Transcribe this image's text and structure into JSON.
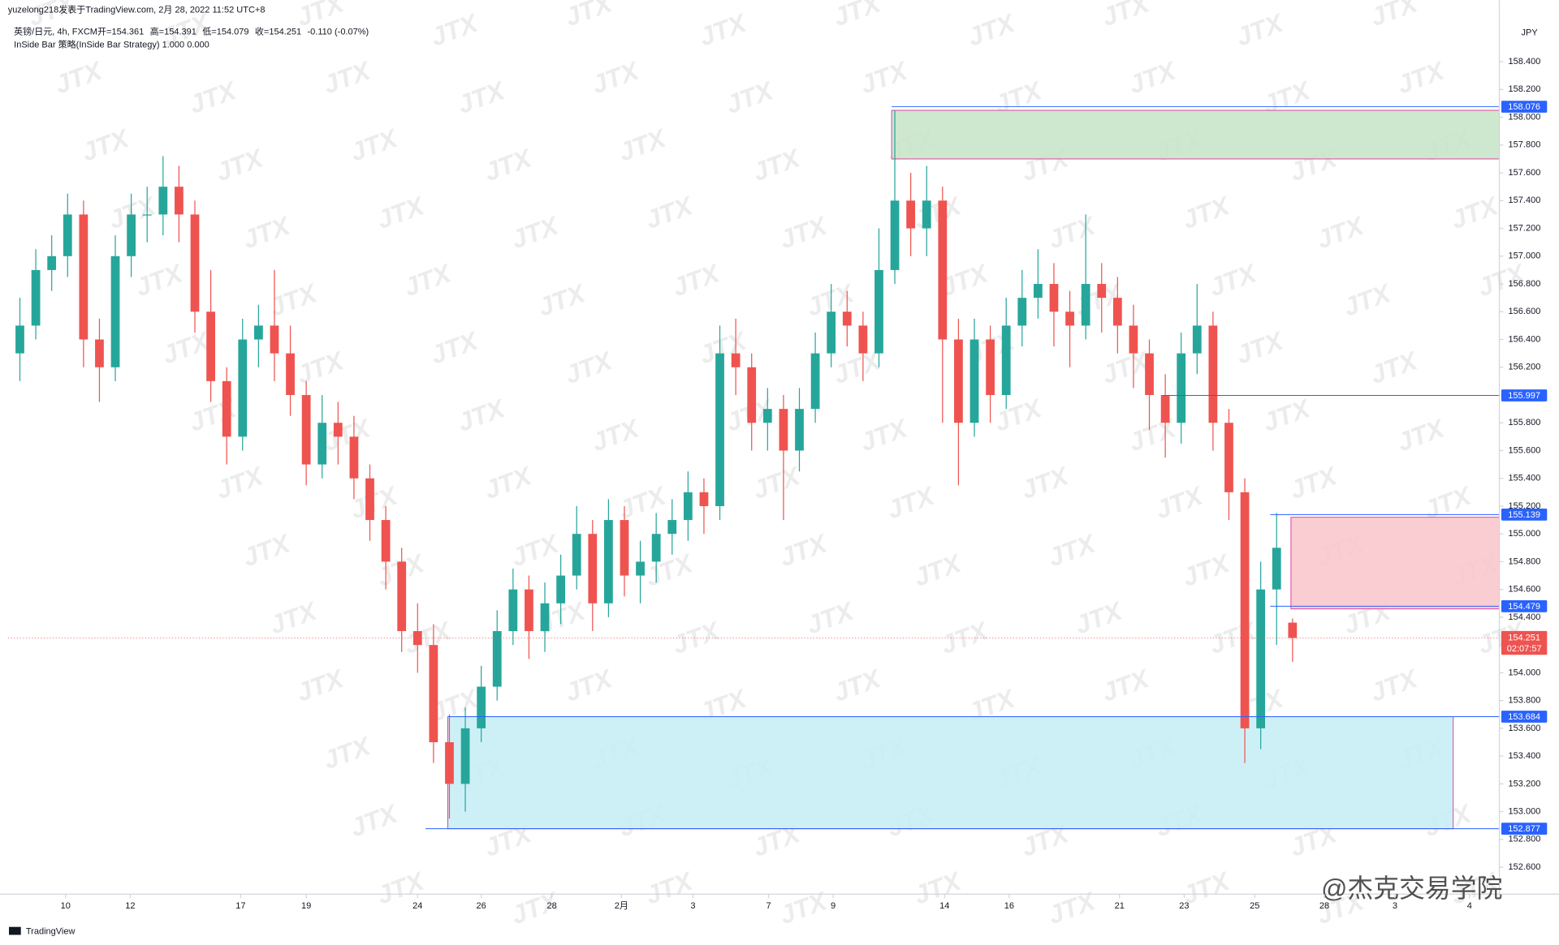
{
  "header": {
    "publisher": "yuzelong218发表于TradingView.com, 2月 28, 2022 11:52 UTC+8",
    "symbol": "英镑/日元, 4h, FXCM",
    "ohlc_text": [
      "开=154.361",
      "高=154.391",
      "低=154.079",
      "收=154.251",
      "-0.110 (-0.07%)"
    ],
    "strategy": "InSide Bar 策略(InSide Bar Strategy)  1.000  0.000"
  },
  "footer": "TradingView",
  "watermark": "JTX",
  "corner_watermark": "@杰克交易学院",
  "chart_data": {
    "type": "candlestick",
    "up_color": "#26a69a",
    "down_color": "#ef5350",
    "currency": "JPY",
    "xlim": [
      -0.75,
      93
    ],
    "ylim": [
      152.406,
      158.843
    ],
    "xticks": [
      {
        "value": 2.875,
        "label": "10"
      },
      {
        "value": 6.938,
        "label": "12"
      },
      {
        "value": 13.875,
        "label": "17"
      },
      {
        "value": 18,
        "label": "19"
      },
      {
        "value": 25,
        "label": "24"
      },
      {
        "value": 29,
        "label": "26"
      },
      {
        "value": 33.438,
        "label": "28"
      },
      {
        "value": 37.813,
        "label": "2月"
      },
      {
        "value": 42.313,
        "label": "3"
      },
      {
        "value": 47.063,
        "label": "7"
      },
      {
        "value": 51.125,
        "label": "9"
      },
      {
        "value": 58.125,
        "label": "14"
      },
      {
        "value": 62.188,
        "label": "16"
      },
      {
        "value": 69.125,
        "label": "21"
      },
      {
        "value": 73.188,
        "label": "23"
      },
      {
        "value": 77.625,
        "label": "25"
      },
      {
        "value": 82,
        "label": "28"
      },
      {
        "value": 86.438,
        "label": "3"
      },
      {
        "value": 91.125,
        "label": "4"
      }
    ],
    "yticks": [
      {
        "value": 152.6,
        "label": "152.600"
      },
      {
        "value": 152.8,
        "label": "152.800"
      },
      {
        "value": 153,
        "label": "153.000"
      },
      {
        "value": 153.2,
        "label": "153.200"
      },
      {
        "value": 153.4,
        "label": "153.400"
      },
      {
        "value": 153.6,
        "label": "153.600"
      },
      {
        "value": 153.8,
        "label": "153.800"
      },
      {
        "value": 154,
        "label": "154.000"
      },
      {
        "value": 154.2,
        "label": "154.200"
      },
      {
        "value": 154.4,
        "label": "154.400"
      },
      {
        "value": 154.6,
        "label": "154.600"
      },
      {
        "value": 154.8,
        "label": "154.800"
      },
      {
        "value": 155,
        "label": "155.000"
      },
      {
        "value": 155.2,
        "label": "155.200"
      },
      {
        "value": 155.4,
        "label": "155.400"
      },
      {
        "value": 155.6,
        "label": "155.600"
      },
      {
        "value": 155.8,
        "label": "155.800"
      },
      {
        "value": 156,
        "label": "156.000"
      },
      {
        "value": 156.2,
        "label": "156.200"
      },
      {
        "value": 156.4,
        "label": "156.400"
      },
      {
        "value": 156.6,
        "label": "156.600"
      },
      {
        "value": 156.8,
        "label": "156.800"
      },
      {
        "value": 157,
        "label": "157.000"
      },
      {
        "value": 157.2,
        "label": "157.200"
      },
      {
        "value": 157.4,
        "label": "157.400"
      },
      {
        "value": 157.6,
        "label": "157.600"
      },
      {
        "value": 157.8,
        "label": "157.800"
      },
      {
        "value": 158,
        "label": "158.000"
      },
      {
        "value": 158.2,
        "label": "158.200"
      },
      {
        "value": 158.4,
        "label": "158.400"
      }
    ],
    "ohlc": [
      [
        156.3,
        156.7,
        156.1,
        156.5
      ],
      [
        156.5,
        157.05,
        156.4,
        156.9
      ],
      [
        156.9,
        157.15,
        156.75,
        157.0
      ],
      [
        157.0,
        157.45,
        156.85,
        157.3
      ],
      [
        157.3,
        157.4,
        156.2,
        156.4
      ],
      [
        156.4,
        156.55,
        155.95,
        156.2
      ],
      [
        156.2,
        157.15,
        156.1,
        157.0
      ],
      [
        157.0,
        157.45,
        156.85,
        157.3
      ],
      [
        157.3,
        157.5,
        157.1,
        157.3
      ],
      [
        157.3,
        157.72,
        157.15,
        157.5
      ],
      [
        157.5,
        157.65,
        157.1,
        157.3
      ],
      [
        157.3,
        157.4,
        156.45,
        156.6
      ],
      [
        156.6,
        156.9,
        155.95,
        156.1
      ],
      [
        156.1,
        156.2,
        155.5,
        155.7
      ],
      [
        155.7,
        156.55,
        155.6,
        156.4
      ],
      [
        156.4,
        156.65,
        156.2,
        156.5
      ],
      [
        156.5,
        156.9,
        156.1,
        156.3
      ],
      [
        156.3,
        156.5,
        155.85,
        156.0
      ],
      [
        156.0,
        156.1,
        155.35,
        155.5
      ],
      [
        155.5,
        156.0,
        155.4,
        155.8
      ],
      [
        155.8,
        155.95,
        155.5,
        155.7
      ],
      [
        155.7,
        155.85,
        155.25,
        155.4
      ],
      [
        155.4,
        155.5,
        154.95,
        155.1
      ],
      [
        155.1,
        155.2,
        154.6,
        154.8
      ],
      [
        154.8,
        154.9,
        154.15,
        154.3
      ],
      [
        154.3,
        154.5,
        154.0,
        154.2
      ],
      [
        154.2,
        154.35,
        153.35,
        153.5
      ],
      [
        153.5,
        153.7,
        152.95,
        153.2
      ],
      [
        153.2,
        153.75,
        153.0,
        153.6
      ],
      [
        153.6,
        154.05,
        153.5,
        153.9
      ],
      [
        153.9,
        154.45,
        153.8,
        154.3
      ],
      [
        154.3,
        154.75,
        154.2,
        154.6
      ],
      [
        154.6,
        154.7,
        154.1,
        154.3
      ],
      [
        154.3,
        154.65,
        154.15,
        154.5
      ],
      [
        154.5,
        154.85,
        154.35,
        154.7
      ],
      [
        154.7,
        155.2,
        154.6,
        155.0
      ],
      [
        155.0,
        155.1,
        154.3,
        154.5
      ],
      [
        154.5,
        155.25,
        154.4,
        155.1
      ],
      [
        155.1,
        155.2,
        154.55,
        154.7
      ],
      [
        154.7,
        154.95,
        154.5,
        154.8
      ],
      [
        154.8,
        155.15,
        154.65,
        155.0
      ],
      [
        155.0,
        155.25,
        154.85,
        155.1
      ],
      [
        155.1,
        155.45,
        154.95,
        155.3
      ],
      [
        155.3,
        155.4,
        155.0,
        155.2
      ],
      [
        155.2,
        156.5,
        155.1,
        156.3
      ],
      [
        156.3,
        156.55,
        156.0,
        156.2
      ],
      [
        156.2,
        156.3,
        155.6,
        155.8
      ],
      [
        155.8,
        156.05,
        155.6,
        155.9
      ],
      [
        155.9,
        156.0,
        155.1,
        155.6
      ],
      [
        155.6,
        156.05,
        155.45,
        155.9
      ],
      [
        155.9,
        156.45,
        155.8,
        156.3
      ],
      [
        156.3,
        156.8,
        156.2,
        156.6
      ],
      [
        156.6,
        156.75,
        156.35,
        156.5
      ],
      [
        156.5,
        156.6,
        156.1,
        156.3
      ],
      [
        156.3,
        157.2,
        156.2,
        156.9
      ],
      [
        156.9,
        158.05,
        156.8,
        157.4
      ],
      [
        157.4,
        157.6,
        157.0,
        157.2
      ],
      [
        157.2,
        157.65,
        157.0,
        157.4
      ],
      [
        157.4,
        157.5,
        155.8,
        156.4
      ],
      [
        156.4,
        156.55,
        155.35,
        155.8
      ],
      [
        155.8,
        156.55,
        155.7,
        156.4
      ],
      [
        156.4,
        156.5,
        155.8,
        156.0
      ],
      [
        156.0,
        156.7,
        155.9,
        156.5
      ],
      [
        156.5,
        156.9,
        156.35,
        156.7
      ],
      [
        156.7,
        157.05,
        156.55,
        156.8
      ],
      [
        156.8,
        156.95,
        156.35,
        156.6
      ],
      [
        156.6,
        156.75,
        156.2,
        156.5
      ],
      [
        156.5,
        157.3,
        156.4,
        156.8
      ],
      [
        156.8,
        156.95,
        156.45,
        156.7
      ],
      [
        156.7,
        156.85,
        156.3,
        156.5
      ],
      [
        156.5,
        156.65,
        156.05,
        156.3
      ],
      [
        156.3,
        156.4,
        155.75,
        156.0
      ],
      [
        156.0,
        156.15,
        155.55,
        155.8
      ],
      [
        155.8,
        156.45,
        155.65,
        156.3
      ],
      [
        156.3,
        156.8,
        156.15,
        156.5
      ],
      [
        156.5,
        156.6,
        155.6,
        155.8
      ],
      [
        155.8,
        155.9,
        155.1,
        155.3
      ],
      [
        155.3,
        155.4,
        153.35,
        153.6
      ],
      [
        153.6,
        154.8,
        153.45,
        154.6
      ],
      [
        154.6,
        155.15,
        154.2,
        154.9
      ],
      [
        154.361,
        154.391,
        154.079,
        154.251
      ]
    ],
    "zones": [
      {
        "top": 158.05,
        "bottom": 157.7,
        "color": "#c8e6c9"
      },
      {
        "top": 155.12,
        "bottom": 154.46,
        "color": "#f8c8cc"
      },
      {
        "top": 153.684,
        "bottom": 152.877,
        "color": "#c8eef6"
      }
    ],
    "levels": [
      158.076,
      155.997,
      155.139,
      154.479,
      153.684,
      152.877
    ],
    "level_color": "#2962ff",
    "last_price": 154.251,
    "countdown": "02:07:57",
    "last_color": "#ef5350"
  }
}
